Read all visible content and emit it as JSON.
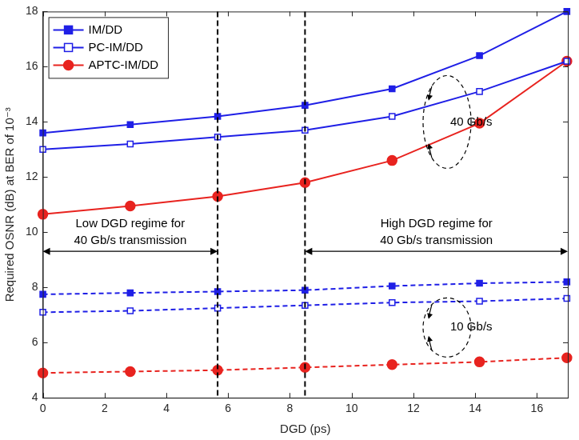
{
  "chart_data": {
    "type": "line",
    "x_label": "DGD (ps)",
    "y_label": "Required OSNR (dB) at BER of 10⁻³",
    "x": [
      0,
      2.83,
      5.66,
      8.49,
      11.31,
      14.14,
      16.97
    ],
    "xlim": [
      0,
      17
    ],
    "xticks": [
      0,
      2,
      4,
      6,
      8,
      10,
      12,
      14,
      16
    ],
    "ylim": [
      4,
      18
    ],
    "yticks": [
      4,
      6,
      8,
      10,
      12,
      14,
      16,
      18
    ],
    "grid": false,
    "legend": "upper left",
    "series": [
      {
        "name": "IM/DD",
        "color": "#1f1fe6",
        "marker": "square-filled",
        "line_style": "solid",
        "values": [
          13.6,
          13.9,
          14.2,
          14.6,
          15.2,
          16.4,
          18.0
        ]
      },
      {
        "name": "PC-IM/DD",
        "color": "#1f1fe6",
        "marker": "square-open",
        "line_style": "solid",
        "values": [
          13.0,
          13.2,
          13.45,
          13.7,
          14.2,
          15.1,
          16.2
        ]
      },
      {
        "name": "APTC-IM/DD",
        "color": "#e8231f",
        "marker": "circle",
        "line_style": "solid",
        "values": [
          10.65,
          10.95,
          11.3,
          11.8,
          12.6,
          13.95,
          16.2
        ]
      },
      {
        "name": "IM/DD",
        "color": "#1f1fe6",
        "marker": "square-filled",
        "line_style": "dashed",
        "values": [
          7.75,
          7.8,
          7.85,
          7.9,
          8.05,
          8.15,
          8.2
        ]
      },
      {
        "name": "PC-IM/DD",
        "color": "#1f1fe6",
        "marker": "square-open",
        "line_style": "dashed",
        "values": [
          7.1,
          7.15,
          7.25,
          7.35,
          7.45,
          7.5,
          7.6
        ]
      },
      {
        "name": "APTC-IM/DD",
        "color": "#e8231f",
        "marker": "circle",
        "line_style": "dashed",
        "values": [
          4.9,
          4.95,
          5.0,
          5.1,
          5.2,
          5.3,
          5.45
        ]
      }
    ],
    "vertical_lines": [
      5.66,
      8.49
    ],
    "annotations": {
      "low_regime": [
        "Low DGD regime for",
        "40 Gb/s transmission"
      ],
      "high_regime": [
        "High DGD regime for",
        "40 Gb/s transmission"
      ],
      "group_40": "40 Gb/s",
      "group_10": "10 Gb/s"
    }
  }
}
